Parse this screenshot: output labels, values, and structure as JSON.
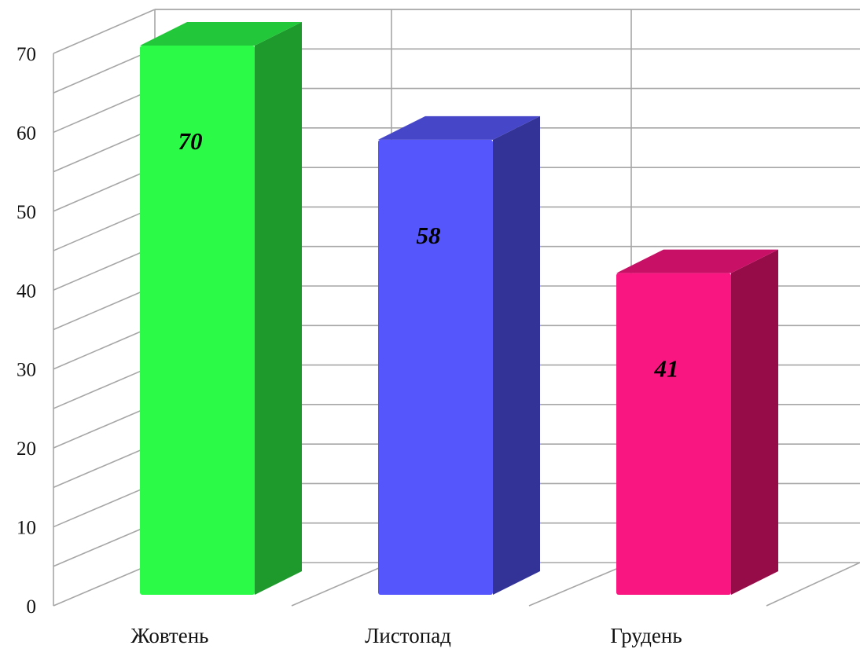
{
  "chart_data": {
    "type": "bar",
    "style": "3d-column",
    "categories": [
      "Жовтень",
      "Листопад",
      "Грудень"
    ],
    "values": [
      70,
      58,
      41
    ],
    "data_labels": [
      "70",
      "58",
      "41"
    ],
    "ylim": [
      0,
      70
    ],
    "yticks": [
      "0",
      "10",
      "20",
      "30",
      "40",
      "50",
      "60",
      "70"
    ],
    "grid": true,
    "legend": "none",
    "colors": {
      "bars": [
        "#2bfa47",
        "#5656fd",
        "#fa1681"
      ],
      "bar_sides": [
        "#1e9a2c",
        "#333397",
        "#950c49"
      ],
      "bar_tops": [
        "#22c83a",
        "#4646c8",
        "#c81066"
      ],
      "grid": "#a6a6a6"
    }
  }
}
